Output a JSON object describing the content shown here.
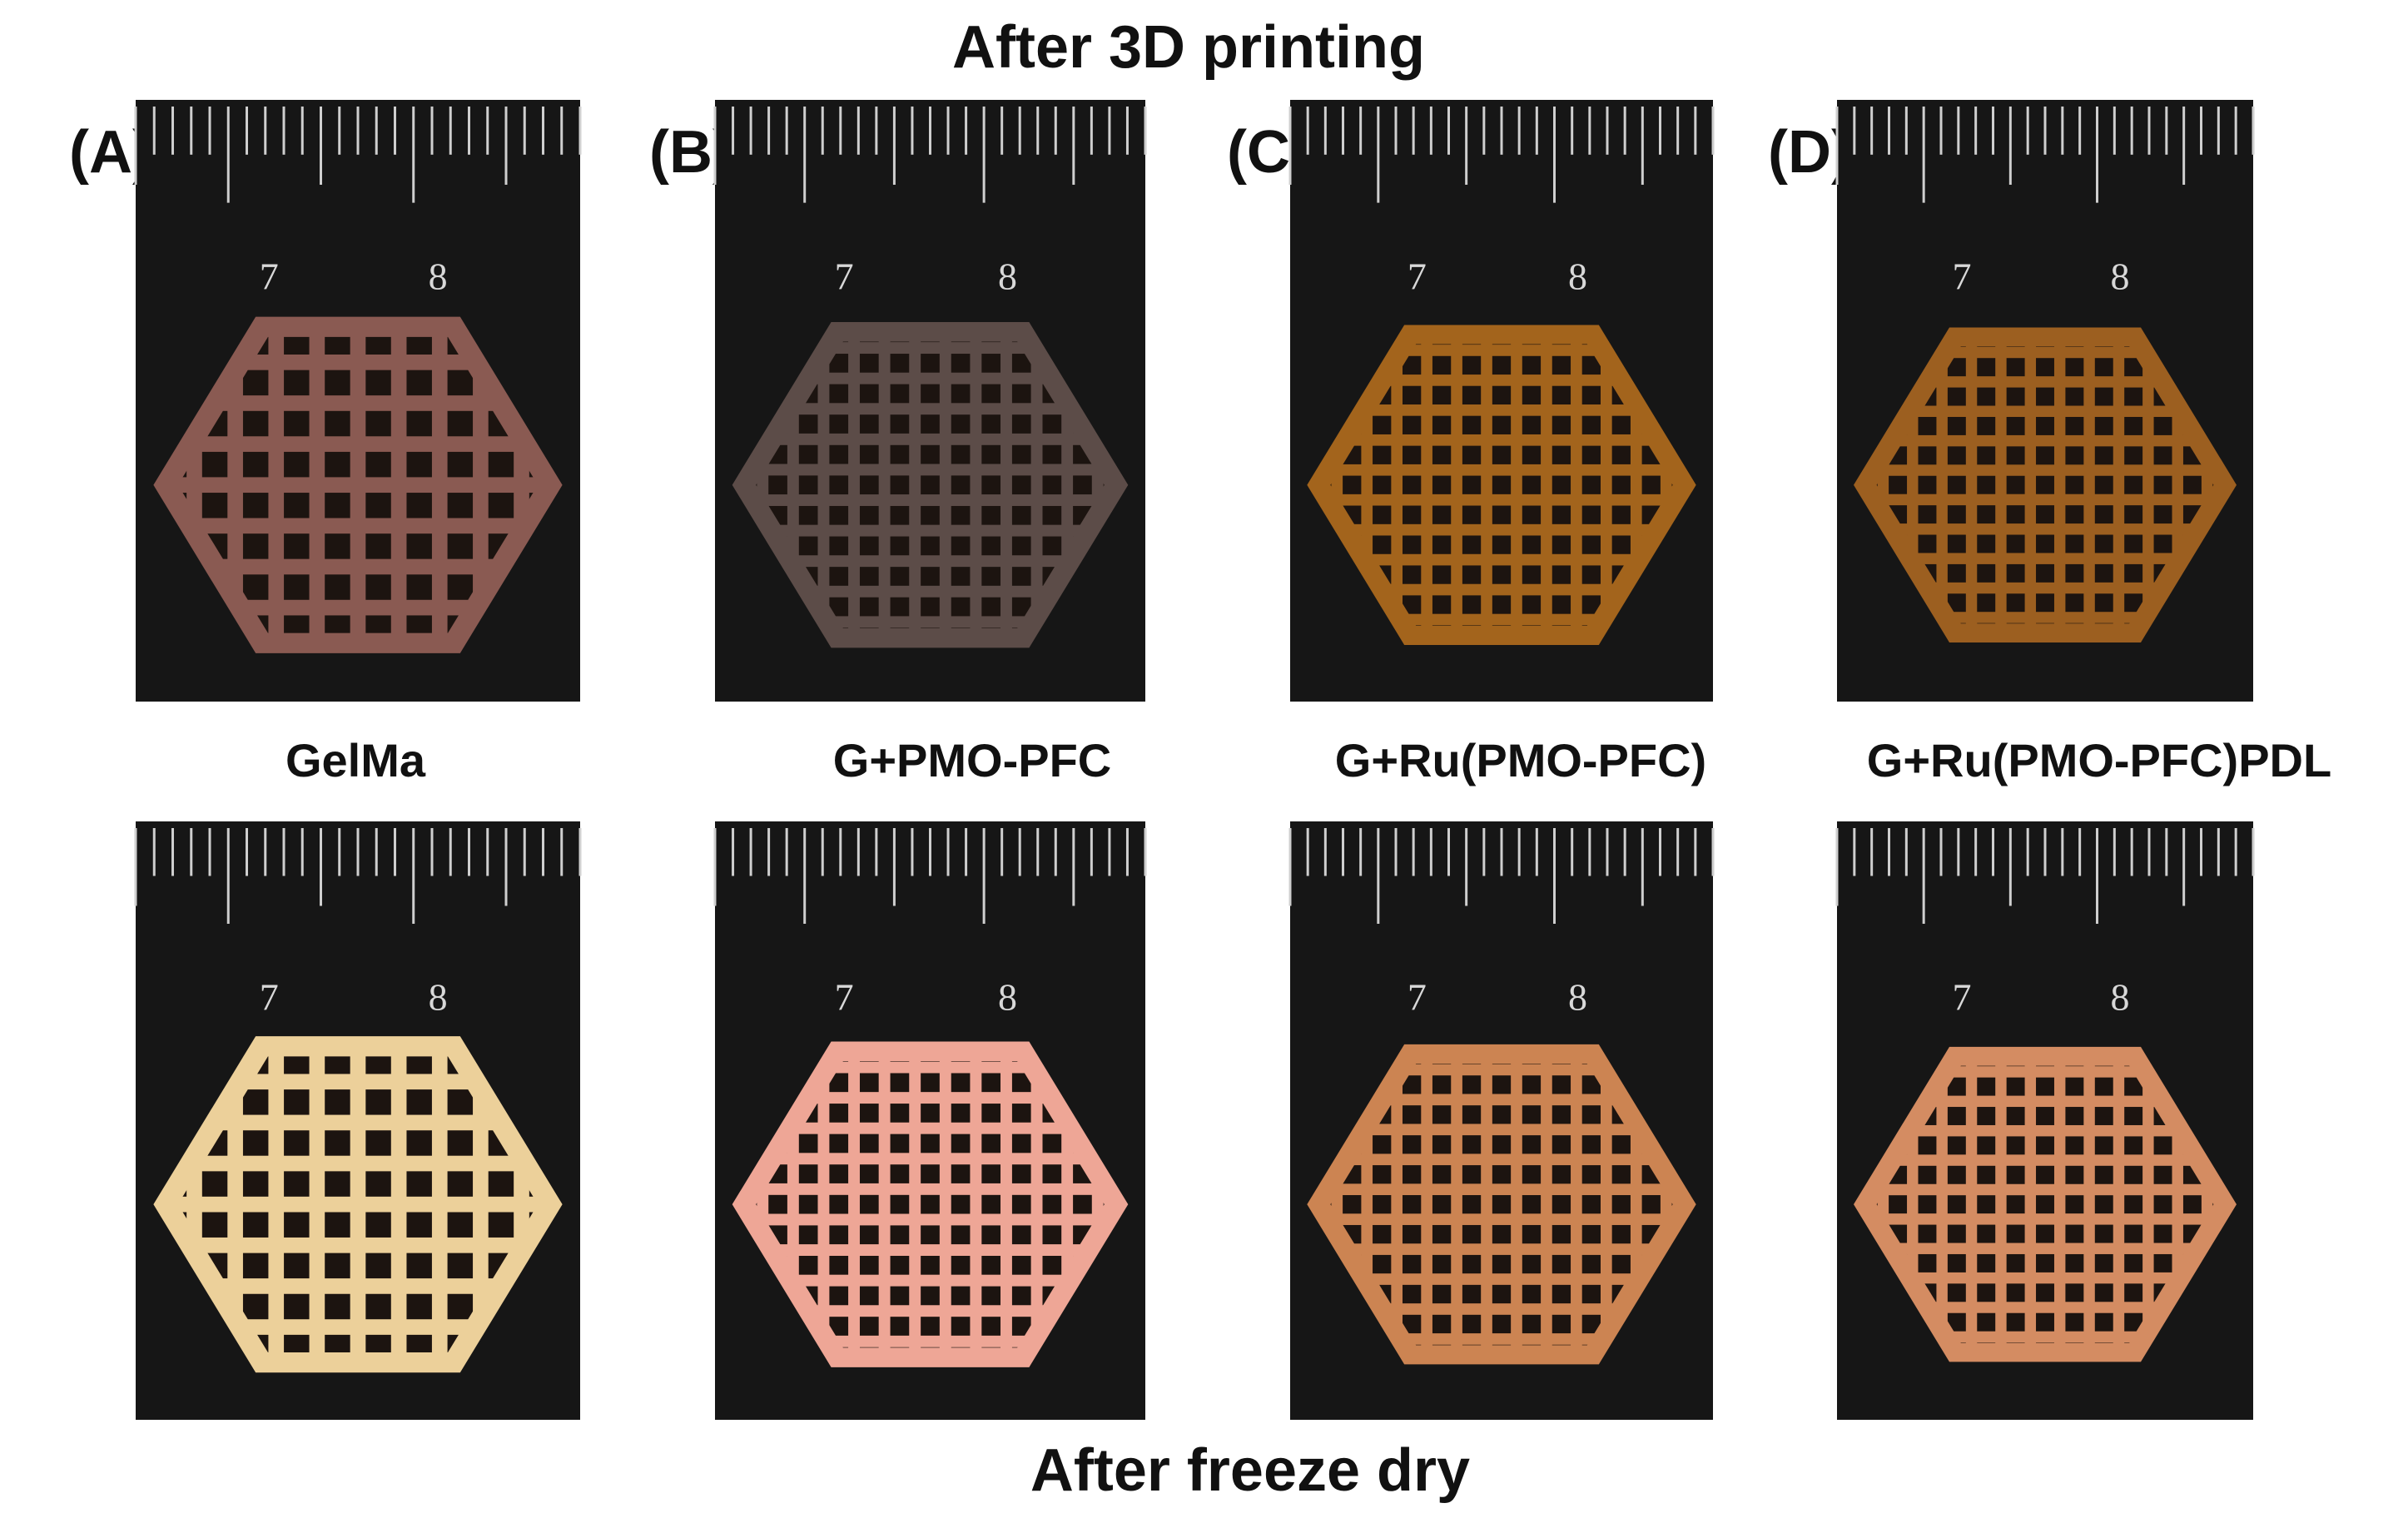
{
  "header": {
    "title": "After 3D printing"
  },
  "panels": [
    {
      "letter": "(A)",
      "name": "GelMa"
    },
    {
      "letter": "(B)",
      "name": "G+PMO-PFC"
    },
    {
      "letter": "(C)",
      "name": "G+Ru(PMO-PFC)"
    },
    {
      "letter": "(D)",
      "name": "G+Ru(PMO-PFC)PDL"
    }
  ],
  "ruler_labels": [
    "7",
    "8"
  ],
  "footer": {
    "title": "After freeze dry"
  }
}
